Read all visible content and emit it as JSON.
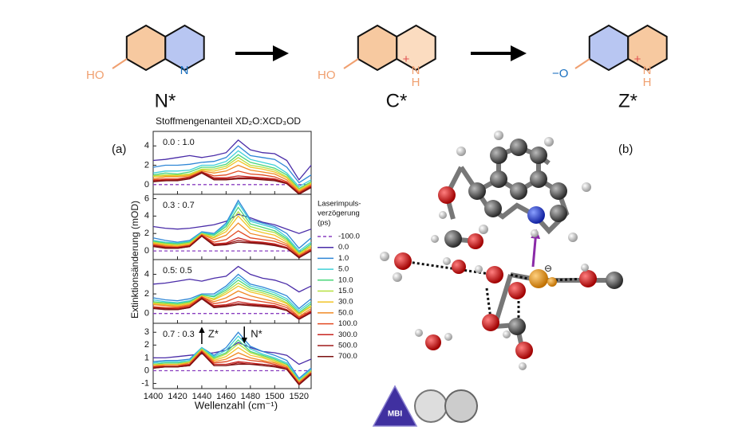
{
  "scheme": {
    "labels": [
      "N*",
      "C*",
      "Z*"
    ],
    "n1": {
      "ho": "HO",
      "n": "N"
    },
    "c1": {
      "ho": "HO",
      "n": "N",
      "h": "H",
      "plus": "+"
    },
    "z1": {
      "o": "−O",
      "n": "N",
      "h": "H",
      "plus": "+"
    }
  },
  "panel_labels": [
    "(a)",
    "(b)"
  ],
  "figure": {
    "title": "Stoffmengenanteil XD₂O:XCD₃OD",
    "xlabel": "Wellenzahl (cm⁻¹)",
    "ylabel": "Extinktionsänderung (mOD)",
    "legend_title": [
      "Laserimpuls-",
      "verzögerung",
      "(ps)"
    ]
  },
  "logo": {
    "text": "MBI"
  },
  "chart_data": [
    {
      "type": "line",
      "title": "0.0 : 1.0",
      "x": [
        1400,
        1410,
        1420,
        1430,
        1440,
        1450,
        1460,
        1470,
        1480,
        1490,
        1500,
        1510,
        1520,
        1530
      ],
      "xlim": [
        1400,
        1530
      ],
      "xticks": [
        1400,
        1420,
        1440,
        1460,
        1480,
        1500,
        1520
      ],
      "ylim": [
        -1,
        5.5
      ],
      "yticks": [
        0,
        2,
        4
      ],
      "series": [
        {
          "name": "-100.0",
          "color": "#8a3fc0",
          "dash": true,
          "values": [
            0,
            0,
            0,
            0,
            0,
            0,
            0,
            0,
            0,
            0,
            0,
            0,
            0,
            0
          ]
        },
        {
          "name": "0.0",
          "color": "#4a2ca8",
          "values": [
            2.5,
            2.6,
            2.8,
            3.0,
            2.8,
            3.0,
            3.3,
            4.6,
            3.6,
            3.3,
            3.2,
            2.5,
            0.5,
            2.0
          ]
        },
        {
          "name": "1.0",
          "color": "#2f86d6",
          "values": [
            1.8,
            2.0,
            2.0,
            2.1,
            2.3,
            2.4,
            2.8,
            4.0,
            3.0,
            2.8,
            2.6,
            1.8,
            0.2,
            1.0
          ]
        },
        {
          "name": "5.0",
          "color": "#3fd0d8",
          "values": [
            1.2,
            1.4,
            1.4,
            1.5,
            2.0,
            2.0,
            2.4,
            3.5,
            2.6,
            2.3,
            2.0,
            1.2,
            -0.2,
            0.5
          ]
        },
        {
          "name": "10.0",
          "color": "#4ad67a",
          "values": [
            1.0,
            1.2,
            1.1,
            1.3,
            1.8,
            1.8,
            2.1,
            3.1,
            2.3,
            2.0,
            1.7,
            1.0,
            -0.4,
            0.3
          ]
        },
        {
          "name": "15.0",
          "color": "#b6e040",
          "values": [
            0.9,
            1.0,
            1.0,
            1.1,
            1.6,
            1.6,
            1.9,
            2.8,
            2.0,
            1.8,
            1.5,
            0.8,
            -0.5,
            0.2
          ]
        },
        {
          "name": "30.0",
          "color": "#f2c428",
          "values": [
            0.8,
            0.9,
            0.9,
            1.0,
            1.5,
            1.4,
            1.7,
            2.5,
            1.8,
            1.6,
            1.3,
            0.7,
            -0.6,
            0.1
          ]
        },
        {
          "name": "50.0",
          "color": "#f08a26",
          "values": [
            0.6,
            0.8,
            0.8,
            0.9,
            1.4,
            1.2,
            1.4,
            2.0,
            1.5,
            1.3,
            1.1,
            0.5,
            -0.7,
            0
          ]
        },
        {
          "name": "100.0",
          "color": "#e24a22",
          "values": [
            0.5,
            0.6,
            0.6,
            0.8,
            1.3,
            0.9,
            1.0,
            1.4,
            1.1,
            1.0,
            0.8,
            0.3,
            -0.8,
            -0.1
          ]
        },
        {
          "name": "300.0",
          "color": "#c82420",
          "values": [
            0.4,
            0.5,
            0.5,
            0.7,
            1.3,
            0.7,
            0.7,
            0.9,
            0.8,
            0.7,
            0.6,
            0.2,
            -0.9,
            -0.2
          ]
        },
        {
          "name": "500.0",
          "color": "#a01a1a",
          "values": [
            0.4,
            0.4,
            0.5,
            0.7,
            1.3,
            0.6,
            0.6,
            0.7,
            0.7,
            0.6,
            0.5,
            0.1,
            -0.9,
            -0.2
          ]
        },
        {
          "name": "700.0",
          "color": "#7a1010",
          "values": [
            0.3,
            0.4,
            0.4,
            0.6,
            1.2,
            0.5,
            0.5,
            0.6,
            0.6,
            0.5,
            0.4,
            0.1,
            -1.0,
            -0.3
          ]
        }
      ]
    },
    {
      "type": "line",
      "title": "0.3 : 0.7",
      "x": [
        1400,
        1410,
        1420,
        1430,
        1440,
        1450,
        1460,
        1470,
        1480,
        1490,
        1500,
        1510,
        1520,
        1530
      ],
      "xlim": [
        1400,
        1530
      ],
      "xticks": [
        1400,
        1420,
        1440,
        1460,
        1480,
        1500,
        1520
      ],
      "ylim": [
        -1,
        6.5
      ],
      "yticks": [
        0,
        2,
        4,
        6
      ],
      "series": [
        {
          "name": "-100.0",
          "color": "#8a3fc0",
          "dash": true,
          "values": [
            0,
            0,
            0,
            0,
            0,
            0,
            0,
            0,
            0,
            0,
            0,
            0,
            0,
            0
          ]
        },
        {
          "name": "0.0",
          "color": "#4a2ca8",
          "values": [
            2.8,
            2.6,
            2.5,
            2.6,
            2.8,
            3.0,
            3.4,
            4.2,
            3.8,
            3.3,
            3.0,
            2.5,
            2.0,
            2.5
          ]
        },
        {
          "name": "1.0",
          "color": "#2f86d6",
          "values": [
            1.5,
            1.2,
            1.0,
            1.2,
            2.2,
            2.0,
            3.2,
            5.8,
            3.6,
            3.2,
            2.8,
            2.0,
            0.3,
            1.5
          ]
        },
        {
          "name": "5.0",
          "color": "#3fd0d8",
          "values": [
            1.2,
            1.0,
            0.9,
            1.1,
            2.1,
            1.9,
            3.0,
            5.5,
            3.4,
            3.0,
            2.6,
            1.6,
            0.0,
            1.0
          ]
        },
        {
          "name": "10.0",
          "color": "#4ad67a",
          "values": [
            1.1,
            0.9,
            0.8,
            1.0,
            2.0,
            1.8,
            2.8,
            5.0,
            3.1,
            2.7,
            2.3,
            1.4,
            -0.2,
            0.8
          ]
        },
        {
          "name": "15.0",
          "color": "#b6e040",
          "values": [
            1.0,
            0.8,
            0.7,
            0.9,
            2.0,
            1.6,
            2.5,
            4.5,
            2.8,
            2.4,
            2.1,
            1.2,
            -0.3,
            0.6
          ]
        },
        {
          "name": "30.0",
          "color": "#f2c428",
          "values": [
            0.9,
            0.7,
            0.6,
            0.8,
            1.9,
            1.5,
            2.2,
            4.0,
            2.5,
            2.1,
            1.8,
            1.0,
            -0.4,
            0.5
          ]
        },
        {
          "name": "50.0",
          "color": "#f08a26",
          "values": [
            0.8,
            0.6,
            0.5,
            0.7,
            1.9,
            1.3,
            1.8,
            3.2,
            2.0,
            1.7,
            1.4,
            0.8,
            -0.5,
            0.3
          ]
        },
        {
          "name": "100.0",
          "color": "#e24a22",
          "values": [
            0.7,
            0.5,
            0.4,
            0.6,
            1.8,
            1.0,
            1.3,
            2.3,
            1.5,
            1.3,
            1.1,
            0.6,
            -0.6,
            0.2
          ]
        },
        {
          "name": "300.0",
          "color": "#c82420",
          "values": [
            0.6,
            0.4,
            0.4,
            0.6,
            1.8,
            0.8,
            0.9,
            1.5,
            1.1,
            1.0,
            0.8,
            0.4,
            -0.7,
            0.1
          ]
        },
        {
          "name": "500.0",
          "color": "#a01a1a",
          "values": [
            0.6,
            0.4,
            0.3,
            0.5,
            1.7,
            0.7,
            0.8,
            1.2,
            1.0,
            0.9,
            0.7,
            0.3,
            -0.7,
            0.0
          ]
        },
        {
          "name": "700.0",
          "color": "#7a1010",
          "values": [
            0.5,
            0.3,
            0.3,
            0.5,
            1.7,
            0.6,
            0.7,
            1.0,
            0.9,
            0.8,
            0.6,
            0.3,
            -0.8,
            0.0
          ]
        }
      ]
    },
    {
      "type": "line",
      "title": "0.5: 0.5",
      "x": [
        1400,
        1410,
        1420,
        1430,
        1440,
        1450,
        1460,
        1470,
        1480,
        1490,
        1500,
        1510,
        1520,
        1530
      ],
      "xlim": [
        1400,
        1530
      ],
      "xticks": [
        1400,
        1420,
        1440,
        1460,
        1480,
        1500,
        1520
      ],
      "ylim": [
        -1,
        5.5
      ],
      "yticks": [
        0,
        2,
        4
      ],
      "series": [
        {
          "name": "-100.0",
          "color": "#8a3fc0",
          "dash": true,
          "values": [
            0,
            0,
            0,
            0,
            0,
            0,
            0,
            0,
            0,
            0,
            0,
            0,
            0,
            0
          ]
        },
        {
          "name": "0.0",
          "color": "#4a2ca8",
          "values": [
            3.0,
            3.1,
            3.3,
            3.5,
            3.3,
            3.6,
            3.8,
            4.8,
            4.0,
            3.6,
            3.4,
            3.0,
            2.2,
            2.8
          ]
        },
        {
          "name": "1.0",
          "color": "#2f86d6",
          "values": [
            1.6,
            1.4,
            1.3,
            1.5,
            2.0,
            2.0,
            2.8,
            4.0,
            3.0,
            2.7,
            2.3,
            1.8,
            0.5,
            1.5
          ]
        },
        {
          "name": "5.0",
          "color": "#3fd0d8",
          "values": [
            1.4,
            1.2,
            1.1,
            1.3,
            1.9,
            1.8,
            2.6,
            3.7,
            2.8,
            2.5,
            2.1,
            1.5,
            0.3,
            1.2
          ]
        },
        {
          "name": "10.0",
          "color": "#4ad67a",
          "values": [
            1.2,
            1.1,
            1.0,
            1.2,
            1.9,
            1.7,
            2.4,
            3.4,
            2.6,
            2.3,
            1.9,
            1.3,
            0.1,
            1.0
          ]
        },
        {
          "name": "15.0",
          "color": "#b6e040",
          "values": [
            1.1,
            1.0,
            0.9,
            1.1,
            1.8,
            1.5,
            2.2,
            3.1,
            2.4,
            2.1,
            1.7,
            1.1,
            0.0,
            0.8
          ]
        },
        {
          "name": "30.0",
          "color": "#f2c428",
          "values": [
            1.0,
            0.9,
            0.8,
            1.0,
            1.8,
            1.4,
            2.0,
            2.8,
            2.2,
            1.9,
            1.5,
            1.0,
            -0.1,
            0.7
          ]
        },
        {
          "name": "50.0",
          "color": "#f08a26",
          "values": [
            0.9,
            0.8,
            0.7,
            0.9,
            1.7,
            1.2,
            1.6,
            2.3,
            1.8,
            1.5,
            1.2,
            0.8,
            -0.3,
            0.5
          ]
        },
        {
          "name": "100.0",
          "color": "#e24a22",
          "values": [
            0.7,
            0.6,
            0.6,
            0.8,
            1.7,
            1.0,
            1.2,
            1.7,
            1.4,
            1.2,
            1.0,
            0.6,
            -0.4,
            0.3
          ]
        },
        {
          "name": "300.0",
          "color": "#c82420",
          "values": [
            0.6,
            0.5,
            0.5,
            0.7,
            1.6,
            0.8,
            0.9,
            1.2,
            1.0,
            0.9,
            0.8,
            0.4,
            -0.5,
            0.2
          ]
        },
        {
          "name": "500.0",
          "color": "#a01a1a",
          "values": [
            0.6,
            0.5,
            0.4,
            0.6,
            1.6,
            0.7,
            0.8,
            1.0,
            0.9,
            0.8,
            0.7,
            0.3,
            -0.6,
            0.1
          ]
        },
        {
          "name": "700.0",
          "color": "#7a1010",
          "values": [
            0.5,
            0.4,
            0.4,
            0.6,
            1.5,
            0.6,
            0.7,
            0.9,
            0.8,
            0.7,
            0.6,
            0.3,
            -0.6,
            0.1
          ]
        }
      ]
    },
    {
      "type": "line",
      "title": "0.7 : 0.3",
      "x": [
        1400,
        1410,
        1420,
        1430,
        1440,
        1450,
        1460,
        1470,
        1480,
        1490,
        1500,
        1510,
        1520,
        1530
      ],
      "xlim": [
        1400,
        1530
      ],
      "xticks": [
        1400,
        1420,
        1440,
        1460,
        1480,
        1500,
        1520
      ],
      "ylim": [
        -1.4,
        3.7
      ],
      "yticks": [
        -1,
        0,
        1,
        2,
        3
      ],
      "annotations": [
        {
          "text": "Z*",
          "x": 1440
        },
        {
          "text": "N*",
          "x": 1475
        }
      ],
      "series": [
        {
          "name": "-100.0",
          "color": "#8a3fc0",
          "dash": true,
          "values": [
            0,
            0,
            0,
            0,
            0,
            0,
            0,
            0,
            0,
            0,
            0,
            0,
            0,
            0
          ]
        },
        {
          "name": "0.0",
          "color": "#4a2ca8",
          "values": [
            1.0,
            1.0,
            1.1,
            1.2,
            1.3,
            1.4,
            1.6,
            2.2,
            1.8,
            1.5,
            1.4,
            1.2,
            0.5,
            0.9
          ]
        },
        {
          "name": "1.0",
          "color": "#2f86d6",
          "values": [
            0.7,
            0.8,
            0.8,
            0.9,
            1.8,
            1.2,
            1.8,
            3.0,
            1.9,
            1.5,
            1.2,
            0.8,
            -0.6,
            0.2
          ]
        },
        {
          "name": "5.0",
          "color": "#3fd0d8",
          "values": [
            0.6,
            0.7,
            0.7,
            0.8,
            1.8,
            1.1,
            1.6,
            2.7,
            1.7,
            1.3,
            1.0,
            0.6,
            -0.7,
            0.1
          ]
        },
        {
          "name": "10.0",
          "color": "#4ad67a",
          "values": [
            0.5,
            0.6,
            0.6,
            0.7,
            1.7,
            1.0,
            1.4,
            2.4,
            1.5,
            1.2,
            0.9,
            0.5,
            -0.8,
            0.0
          ]
        },
        {
          "name": "15.0",
          "color": "#b6e040",
          "values": [
            0.5,
            0.5,
            0.5,
            0.7,
            1.7,
            0.9,
            1.3,
            2.1,
            1.4,
            1.1,
            0.8,
            0.4,
            -0.8,
            0.0
          ]
        },
        {
          "name": "30.0",
          "color": "#f2c428",
          "values": [
            0.4,
            0.5,
            0.5,
            0.6,
            1.6,
            0.8,
            1.1,
            1.8,
            1.2,
            1.0,
            0.7,
            0.4,
            -0.9,
            -0.1
          ]
        },
        {
          "name": "50.0",
          "color": "#f08a26",
          "values": [
            0.4,
            0.4,
            0.4,
            0.6,
            1.6,
            0.7,
            0.9,
            1.4,
            1.0,
            0.8,
            0.6,
            0.3,
            -0.9,
            -0.1
          ]
        },
        {
          "name": "100.0",
          "color": "#e24a22",
          "values": [
            0.3,
            0.4,
            0.4,
            0.5,
            1.5,
            0.6,
            0.7,
            1.0,
            0.8,
            0.7,
            0.5,
            0.2,
            -1.0,
            -0.2
          ]
        },
        {
          "name": "300.0",
          "color": "#c82420",
          "values": [
            0.3,
            0.3,
            0.3,
            0.5,
            1.5,
            0.5,
            0.5,
            0.7,
            0.6,
            0.5,
            0.4,
            0.2,
            -1.0,
            -0.2
          ]
        },
        {
          "name": "500.0",
          "color": "#a01a1a",
          "values": [
            0.2,
            0.3,
            0.3,
            0.4,
            1.4,
            0.4,
            0.4,
            0.6,
            0.5,
            0.5,
            0.4,
            0.1,
            -1.1,
            -0.2
          ]
        },
        {
          "name": "700.0",
          "color": "#7a1010",
          "values": [
            0.2,
            0.3,
            0.3,
            0.4,
            1.4,
            0.4,
            0.4,
            0.5,
            0.5,
            0.4,
            0.3,
            0.1,
            -1.1,
            -0.3
          ]
        }
      ]
    }
  ]
}
